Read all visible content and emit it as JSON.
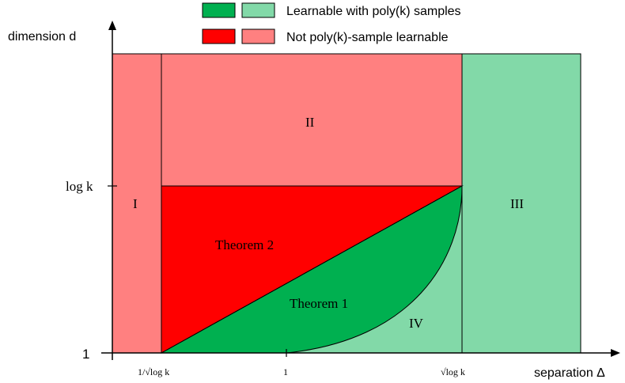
{
  "legend": {
    "learnable_label": "Learnable with poly(k) samples",
    "not_learnable_label": "Not poly(k)-sample learnable"
  },
  "axes": {
    "y_title": "dimension d",
    "x_title": "separation Δ",
    "y_tick_top": "log k",
    "y_tick_bottom": "1",
    "x_tick_left": "1/√log k",
    "x_tick_mid": "1",
    "x_tick_right": "√log k"
  },
  "regions": {
    "I": "I",
    "II": "II",
    "III": "III",
    "IV": "IV",
    "theorem1": "Theorem 1",
    "theorem2": "Theorem 2"
  },
  "colors": {
    "dark_green": "#00b050",
    "light_green": "#82d9a8",
    "red": "#ff0000",
    "light_red": "#ff8080",
    "axis": "#000000"
  }
}
